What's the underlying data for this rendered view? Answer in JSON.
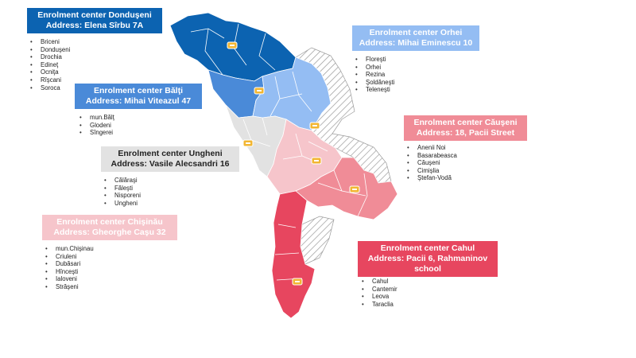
{
  "colors": {
    "donduseni": "#0c63b1",
    "orhei": "#94bdf3",
    "balti": "#4a8ad8",
    "ungheni": "#e2e2e2",
    "causeni": "#f08c97",
    "chisinau": "#f3b8bc",
    "cahul": "#e7465f",
    "light_pink_region": "#f6c5cb"
  },
  "centers": [
    {
      "id": "donduseni",
      "title": "Enrolment center Donduşeni",
      "address": "Address: Elena Sîrbu 7A",
      "districts": [
        "Briceni",
        "Donduşeni",
        "Drochia",
        "Edineţ",
        "Ocniţa",
        "Rîşcani",
        "Soroca"
      ]
    },
    {
      "id": "orhei",
      "title": "Enrolment center Orhei",
      "address": "Address: Mihai Eminescu 10",
      "districts": [
        "Floreşti",
        "Orhei",
        "Rezina",
        "Şoldăneşti",
        "Teleneşti"
      ]
    },
    {
      "id": "balti",
      "title": "Enrolment center Bălţi",
      "address": "Address: Mihai Viteazul 47",
      "districts": [
        "mun.Bălţ",
        "Glodeni",
        "Sîngerei"
      ]
    },
    {
      "id": "causeni",
      "title": "Enrolment center Căuşeni",
      "address": "Address: 18, Pacii Street",
      "districts": [
        "Anenii Noi",
        "Basarabeasca",
        "Căuşeni",
        "Cimişlia",
        "Ştefan-Vodă"
      ]
    },
    {
      "id": "ungheni",
      "title": "Enrolment center Ungheni",
      "address": "Address: Vasile Alecsandri 16",
      "districts": [
        "Călăraşi",
        "Făleşti",
        "Nisporeni",
        "Ungheni"
      ]
    },
    {
      "id": "chisinau",
      "title": "Enrolment  center Chişinău",
      "address": "Address: Gheorghe Caşu 32",
      "districts": [
        "mun.Chişinau",
        "Criuleni",
        "Dubăsari",
        "Hînceşti",
        "Ialoveni",
        "Străşeni"
      ]
    },
    {
      "id": "cahul",
      "title": "Enrolment center Cahul",
      "address": "Address: Pacii 6, Rahmaninov school",
      "districts": [
        "Cahul",
        "Cantemir",
        "Leova",
        "Taraclia"
      ]
    }
  ]
}
